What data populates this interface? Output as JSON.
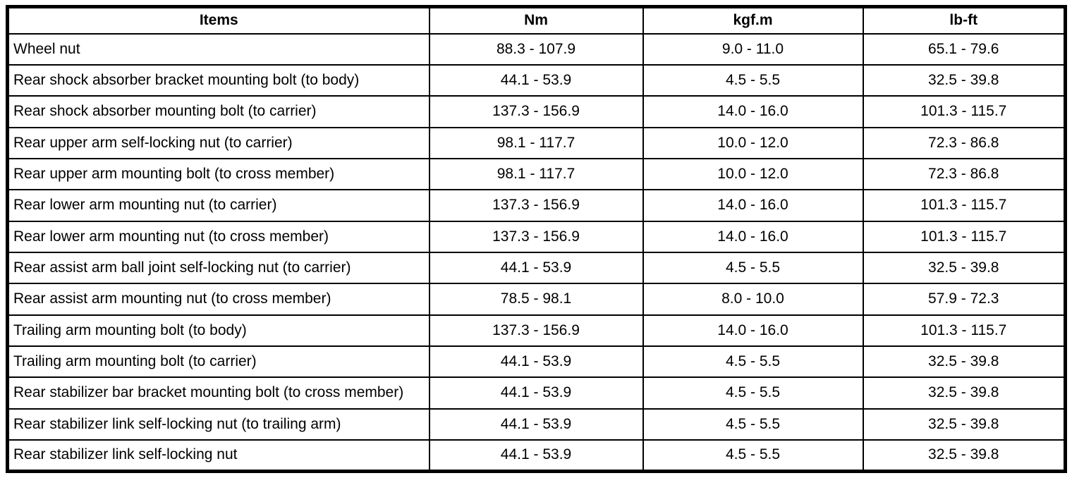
{
  "table": {
    "headers": [
      "Items",
      "Nm",
      "kgf.m",
      "lb-ft"
    ],
    "rows": [
      [
        "Wheel nut",
        "88.3 - 107.9",
        "9.0 - 11.0",
        "65.1 - 79.6"
      ],
      [
        "Rear shock absorber bracket mounting bolt (to body)",
        "44.1 - 53.9",
        "4.5 - 5.5",
        "32.5 - 39.8"
      ],
      [
        "Rear shock absorber mounting bolt (to carrier)",
        "137.3 - 156.9",
        "14.0 - 16.0",
        "101.3 - 115.7"
      ],
      [
        "Rear upper arm self-locking nut (to carrier)",
        "98.1 - 117.7",
        "10.0 - 12.0",
        "72.3 - 86.8"
      ],
      [
        "Rear upper arm mounting bolt (to cross member)",
        "98.1 - 117.7",
        "10.0 - 12.0",
        "72.3 - 86.8"
      ],
      [
        "Rear lower arm mounting nut (to carrier)",
        "137.3 - 156.9",
        "14.0 - 16.0",
        "101.3 - 115.7"
      ],
      [
        "Rear lower arm mounting nut (to cross member)",
        "137.3 - 156.9",
        "14.0 - 16.0",
        "101.3 - 115.7"
      ],
      [
        "Rear assist arm ball joint self-locking nut (to carrier)",
        "44.1 - 53.9",
        "4.5 - 5.5",
        "32.5 - 39.8"
      ],
      [
        "Rear assist arm mounting nut (to cross member)",
        "78.5 - 98.1",
        "8.0 - 10.0",
        "57.9 - 72.3"
      ],
      [
        "Trailing arm mounting bolt (to body)",
        "137.3 - 156.9",
        "14.0 - 16.0",
        "101.3 - 115.7"
      ],
      [
        "Trailing arm mounting bolt (to carrier)",
        "44.1 - 53.9",
        "4.5 - 5.5",
        "32.5 - 39.8"
      ],
      [
        "Rear stabilizer bar bracket mounting bolt (to cross member)",
        "44.1 - 53.9",
        "4.5 - 5.5",
        "32.5 - 39.8"
      ],
      [
        "Rear stabilizer link self-locking nut (to trailing arm)",
        "44.1 - 53.9",
        "4.5 - 5.5",
        "32.5 - 39.8"
      ],
      [
        "Rear stabilizer link self-locking nut",
        "44.1 - 53.9",
        "4.5 - 5.5",
        "32.5 - 39.8"
      ]
    ]
  }
}
